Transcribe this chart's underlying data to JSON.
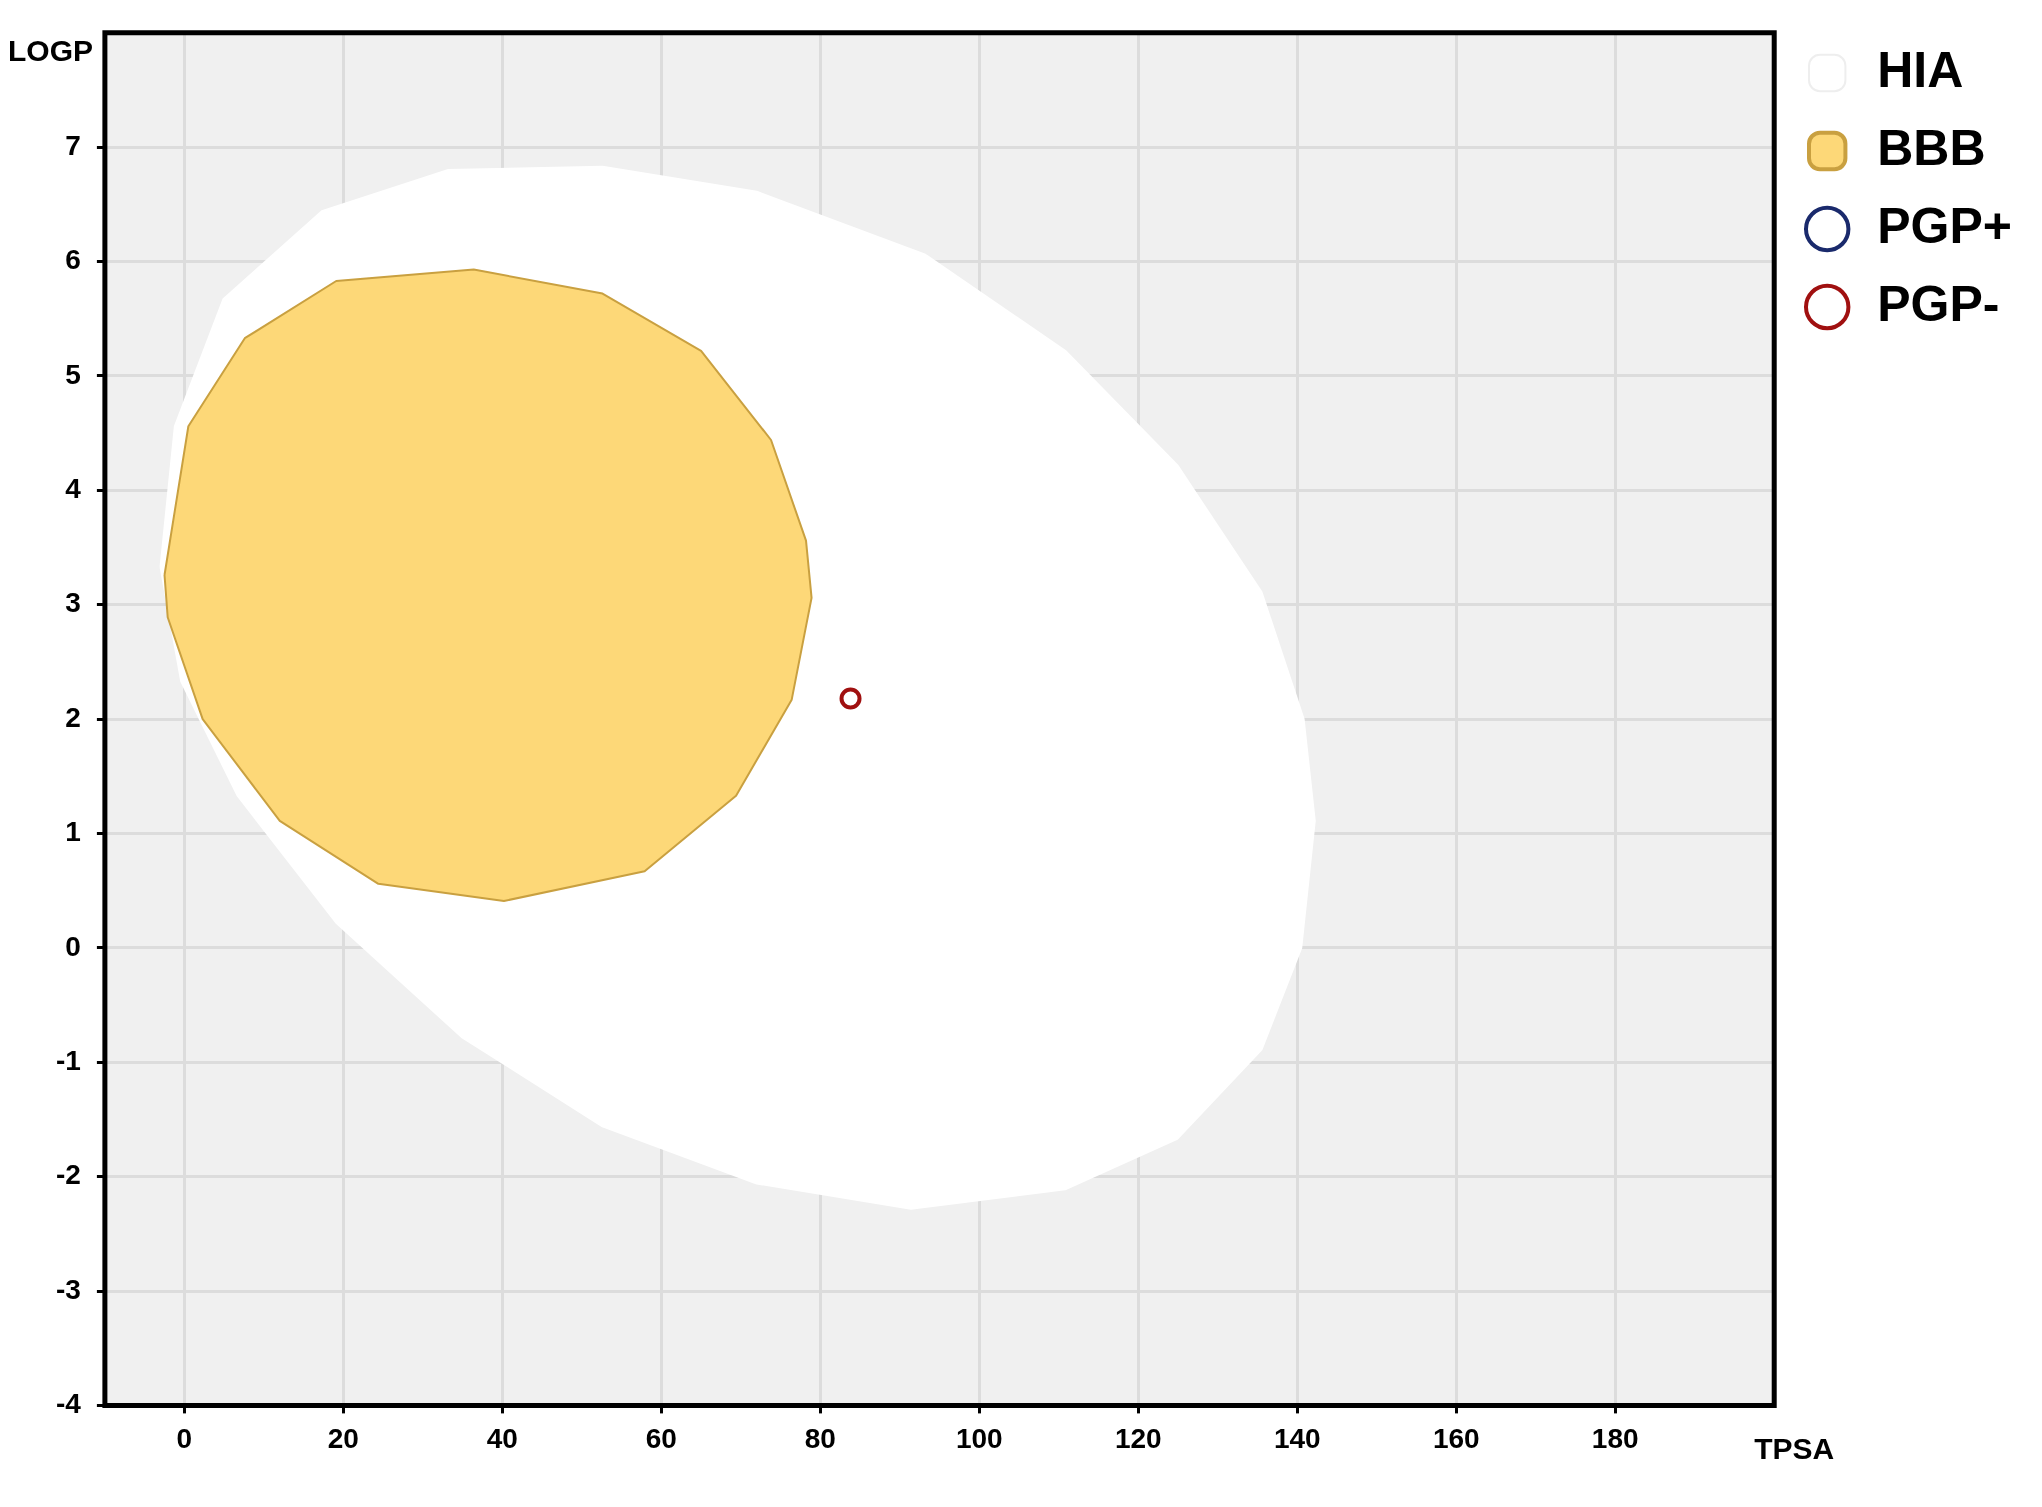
{
  "chart_data": {
    "type": "scatter",
    "xlabel": "TPSA",
    "ylabel": "LOGP",
    "xlim": [
      -10,
      200
    ],
    "ylim": [
      -4,
      8
    ],
    "xticks": [
      0,
      20,
      40,
      60,
      80,
      100,
      120,
      140,
      160,
      180
    ],
    "yticks": [
      -4,
      -3,
      -2,
      -1,
      0,
      1,
      2,
      3,
      4,
      5,
      6,
      7
    ],
    "grid": true,
    "legend": "top right",
    "marker": "circle",
    "series": [
      {
        "name": "HIA",
        "type": "area",
        "marker": "none",
        "color": "#ffffff",
        "x": [
          -3,
          -1.2,
          4.9,
          17.3,
          33.2,
          52.6,
          72,
          93.2,
          110.8,
          124.9,
          135.5,
          140.8,
          142.2,
          140.5,
          135.5,
          124.9,
          110.8,
          91.4,
          72,
          52.6,
          34.9,
          19.1,
          6.7,
          -0.4
        ],
        "values": [
          3.33,
          4.56,
          5.67,
          6.44,
          6.8,
          6.83,
          6.61,
          6.06,
          5.22,
          4.22,
          3.11,
          2.0,
          1.11,
          0,
          -0.89,
          -1.67,
          -2.11,
          -2.28,
          -2.06,
          -1.56,
          -0.78,
          0.22,
          1.33,
          2.33
        ]
      },
      {
        "name": "BBB",
        "type": "area",
        "marker": "none",
        "color": "#fdd878",
        "x": [
          -2.5,
          0.5,
          7.6,
          19.1,
          36.4,
          52.6,
          65,
          73.8,
          78.2,
          78.9,
          76.4,
          69.4,
          57.9,
          40.2,
          24.4,
          12,
          2.3,
          -2.1
        ],
        "values": [
          3.26,
          4.56,
          5.33,
          5.83,
          5.93,
          5.72,
          5.22,
          4.44,
          3.56,
          3.06,
          2.17,
          1.33,
          0.67,
          0.41,
          0.56,
          1.11,
          2.0,
          2.89
        ]
      },
      {
        "name": "PGP+",
        "type": "scatter",
        "color": "#1a2a6c"
      },
      {
        "name": "PGP-",
        "type": "scatter",
        "color": "#a01010",
        "x": [
          83.8
        ],
        "values": [
          2.18
        ]
      }
    ]
  }
}
